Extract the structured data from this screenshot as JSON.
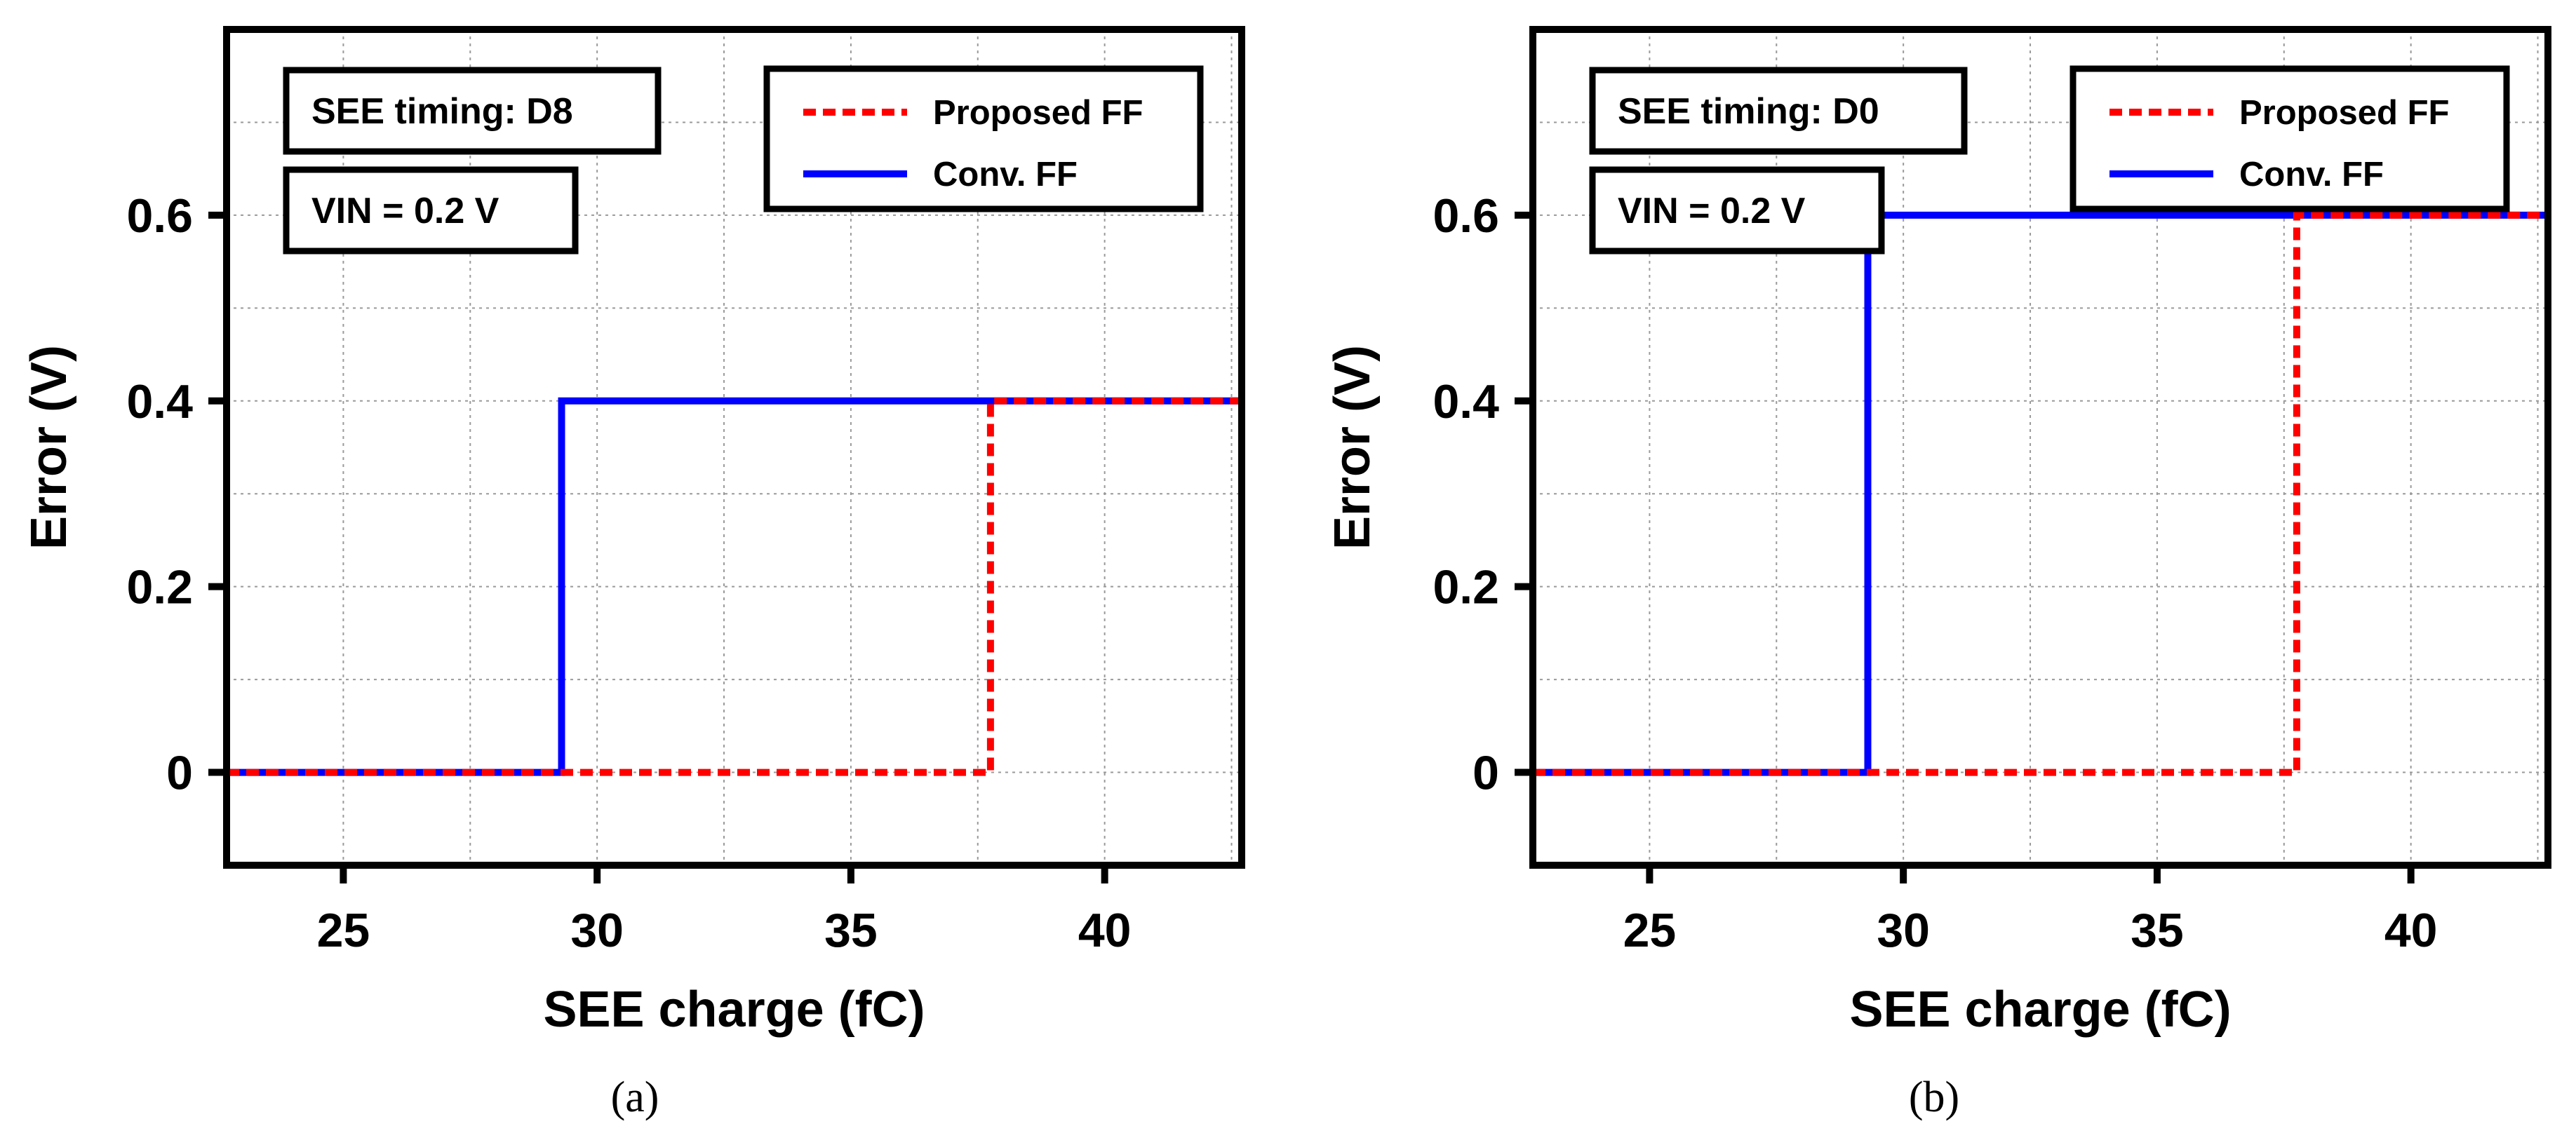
{
  "chart_data": [
    {
      "type": "line",
      "panel": "a",
      "caption": "(a)",
      "xlabel": "SEE charge (fC)",
      "ylabel": "Error (V)",
      "xlim": [
        22.7,
        42.7
      ],
      "ylim": [
        -0.1,
        0.8
      ],
      "xticks": [
        25,
        30,
        35,
        40
      ],
      "xtick_labels": [
        "25",
        "30",
        "35",
        "40"
      ],
      "yticks": [
        0,
        0.2,
        0.4,
        0.6
      ],
      "ytick_labels": [
        "0",
        "0.2",
        "0.4",
        "0.6"
      ],
      "xgrid_minor": [
        22.5,
        27.5,
        32.5,
        37.5,
        42.5
      ],
      "ygrid_minor": [
        -0.1,
        0.1,
        0.3,
        0.5,
        0.7
      ],
      "grid": true,
      "legend_position": "top-right",
      "annotations": [
        "SEE timing: D8",
        "VIN = 0.2 V"
      ],
      "series": [
        {
          "name": "Conv. FF",
          "color": "#0000ff",
          "style": "solid",
          "x": [
            22.7,
            29.3,
            29.3,
            42.7
          ],
          "y": [
            0,
            0,
            0.4,
            0.4
          ]
        },
        {
          "name": "Proposed FF",
          "color": "#ff0000",
          "style": "dashed",
          "x": [
            22.7,
            37.75,
            37.75,
            42.7
          ],
          "y": [
            0,
            0,
            0.4,
            0.4
          ]
        }
      ]
    },
    {
      "type": "line",
      "panel": "b",
      "caption": "(b)",
      "xlabel": "SEE charge (fC)",
      "ylabel": "Error (V)",
      "xlim": [
        22.7,
        42.7
      ],
      "ylim": [
        -0.1,
        0.8
      ],
      "xticks": [
        25,
        30,
        35,
        40
      ],
      "xtick_labels": [
        "25",
        "30",
        "35",
        "40"
      ],
      "yticks": [
        0,
        0.2,
        0.4,
        0.6
      ],
      "ytick_labels": [
        "0",
        "0.2",
        "0.4",
        "0.6"
      ],
      "xgrid_minor": [
        22.5,
        27.5,
        32.5,
        37.5,
        42.5
      ],
      "ygrid_minor": [
        -0.1,
        0.1,
        0.3,
        0.5,
        0.7
      ],
      "grid": true,
      "legend_position": "top-right",
      "annotations": [
        "SEE timing: D0",
        "VIN = 0.2 V"
      ],
      "series": [
        {
          "name": "Conv. FF",
          "color": "#0000ff",
          "style": "solid",
          "x": [
            22.7,
            29.3,
            29.3,
            42.7
          ],
          "y": [
            0,
            0,
            0.6,
            0.6
          ]
        },
        {
          "name": "Proposed FF",
          "color": "#ff0000",
          "style": "dashed",
          "x": [
            22.7,
            37.75,
            37.75,
            42.7
          ],
          "y": [
            0,
            0,
            0.6,
            0.6
          ]
        }
      ]
    }
  ]
}
